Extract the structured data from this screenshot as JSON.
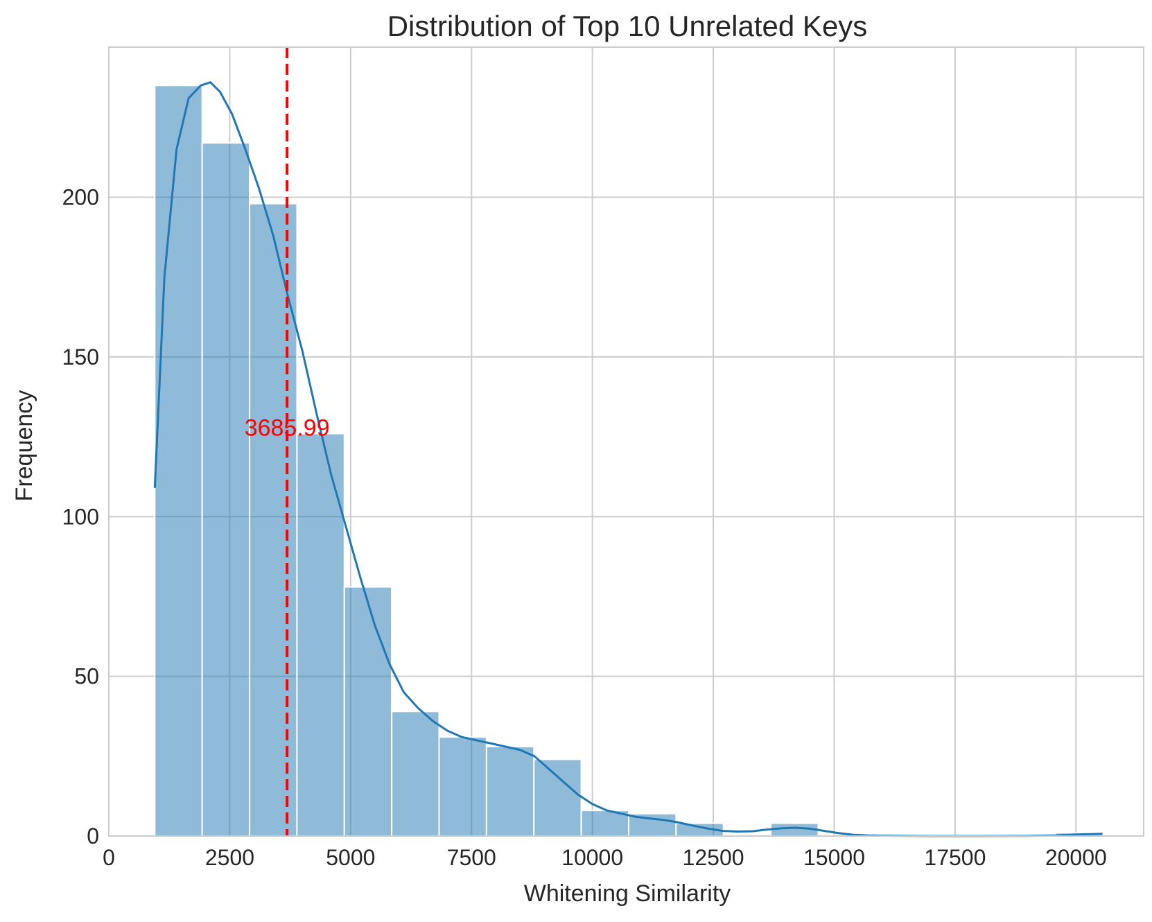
{
  "chart_data": {
    "type": "histogram",
    "title": "Distribution of Top 10 Unrelated Keys",
    "xlabel": "Whitening Similarity",
    "ylabel": "Frequency",
    "xlim": [
      0,
      21400
    ],
    "ylim": [
      0,
      247
    ],
    "xticks": [
      "0",
      "2500",
      "5000",
      "7500",
      "10000",
      "12500",
      "15000",
      "17500",
      "20000"
    ],
    "xtick_values": [
      0,
      2500,
      5000,
      7500,
      10000,
      12500,
      15000,
      17500,
      20000
    ],
    "yticks": [
      "0",
      "50",
      "100",
      "150",
      "200"
    ],
    "ytick_values": [
      0,
      50,
      100,
      150,
      200
    ],
    "grid": true,
    "bar_color": "#1f77b4",
    "bins": [
      {
        "x0": 950,
        "x1": 1930,
        "count": 235
      },
      {
        "x0": 1930,
        "x1": 2910,
        "count": 217
      },
      {
        "x0": 2910,
        "x1": 3890,
        "count": 198
      },
      {
        "x0": 3890,
        "x1": 4870,
        "count": 126
      },
      {
        "x0": 4870,
        "x1": 5850,
        "count": 78
      },
      {
        "x0": 5850,
        "x1": 6830,
        "count": 39
      },
      {
        "x0": 6830,
        "x1": 7810,
        "count": 31
      },
      {
        "x0": 7810,
        "x1": 8790,
        "count": 28
      },
      {
        "x0": 8790,
        "x1": 9770,
        "count": 24
      },
      {
        "x0": 9770,
        "x1": 10750,
        "count": 8
      },
      {
        "x0": 10750,
        "x1": 11730,
        "count": 7
      },
      {
        "x0": 11730,
        "x1": 12710,
        "count": 4
      },
      {
        "x0": 12710,
        "x1": 13690,
        "count": 0
      },
      {
        "x0": 13690,
        "x1": 14670,
        "count": 4
      },
      {
        "x0": 14670,
        "x1": 15650,
        "count": 0
      },
      {
        "x0": 15650,
        "x1": 16630,
        "count": 0
      },
      {
        "x0": 16630,
        "x1": 17610,
        "count": 0
      },
      {
        "x0": 17610,
        "x1": 18590,
        "count": 0
      },
      {
        "x0": 18590,
        "x1": 19570,
        "count": 0
      },
      {
        "x0": 19570,
        "x1": 20550,
        "count": 1
      }
    ],
    "kde": {
      "color": "#1f77b4",
      "points": [
        [
          950,
          109
        ],
        [
          1150,
          175
        ],
        [
          1400,
          215
        ],
        [
          1650,
          231
        ],
        [
          1900,
          235
        ],
        [
          2100,
          236
        ],
        [
          2300,
          233
        ],
        [
          2550,
          226
        ],
        [
          2800,
          216
        ],
        [
          3100,
          203
        ],
        [
          3400,
          188
        ],
        [
          3685.99,
          170
        ],
        [
          4000,
          152
        ],
        [
          4300,
          132
        ],
        [
          4600,
          113
        ],
        [
          4900,
          97
        ],
        [
          5200,
          81
        ],
        [
          5500,
          66
        ],
        [
          5800,
          54
        ],
        [
          6100,
          45
        ],
        [
          6400,
          40
        ],
        [
          6700,
          36
        ],
        [
          7000,
          33
        ],
        [
          7300,
          31
        ],
        [
          7600,
          30
        ],
        [
          7900,
          29
        ],
        [
          8200,
          28
        ],
        [
          8500,
          27
        ],
        [
          8800,
          25
        ],
        [
          9100,
          21
        ],
        [
          9400,
          17
        ],
        [
          9700,
          13
        ],
        [
          10000,
          10
        ],
        [
          10300,
          8
        ],
        [
          10600,
          7
        ],
        [
          10900,
          6
        ],
        [
          11200,
          5.5
        ],
        [
          11500,
          5
        ],
        [
          11800,
          4.2
        ],
        [
          12100,
          3.2
        ],
        [
          12400,
          2.3
        ],
        [
          12700,
          1.6
        ],
        [
          13000,
          1.4
        ],
        [
          13300,
          1.5
        ],
        [
          13600,
          2
        ],
        [
          13900,
          2.4
        ],
        [
          14200,
          2.6
        ],
        [
          14500,
          2.3
        ],
        [
          14800,
          1.6
        ],
        [
          15100,
          0.9
        ],
        [
          15400,
          0.4
        ],
        [
          15700,
          0.2
        ],
        [
          16000,
          0.1
        ],
        [
          17000,
          0
        ],
        [
          18000,
          0
        ],
        [
          19000,
          0.05
        ],
        [
          19600,
          0.2
        ],
        [
          20000,
          0.5
        ],
        [
          20550,
          0.7
        ]
      ]
    },
    "mean_line": {
      "value": 3685.99,
      "label": "3685.99",
      "color": "#ff0000",
      "label_y": 128
    }
  }
}
